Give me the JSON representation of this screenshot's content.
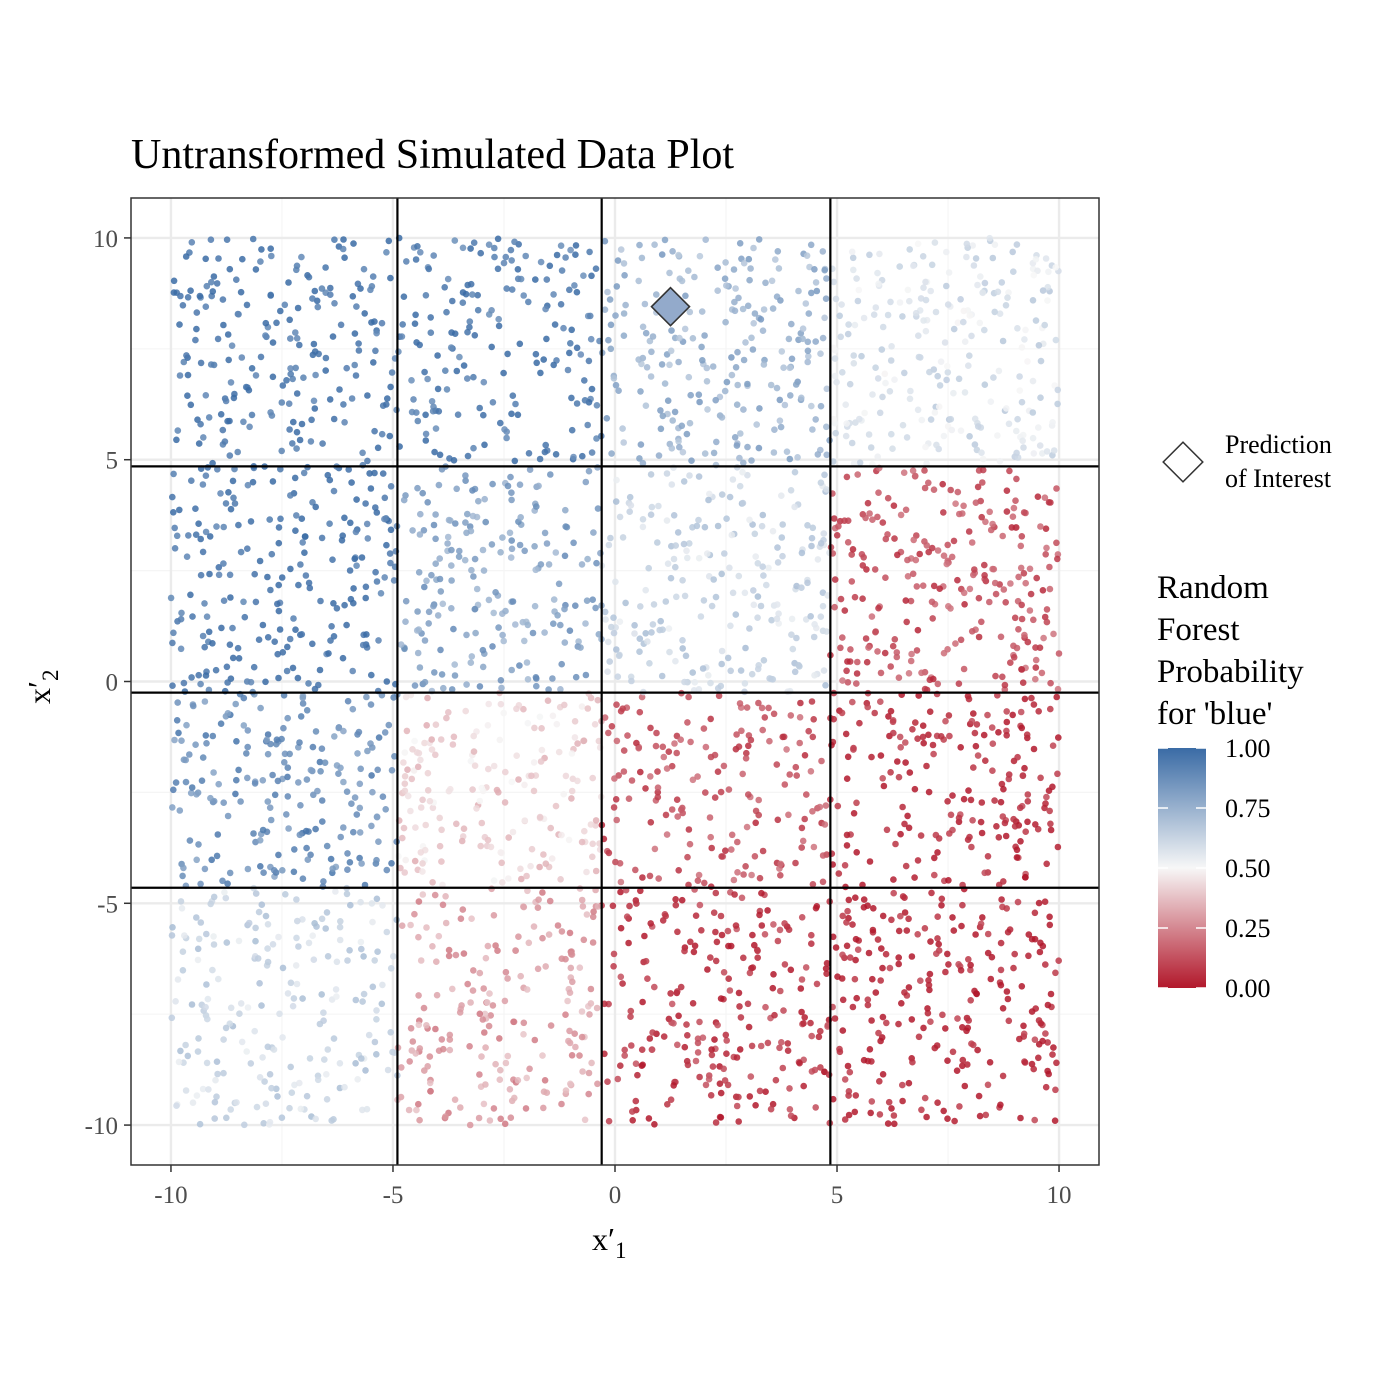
{
  "colors": {
    "high": "#3A6BA5",
    "mid": "#F7F7F7",
    "low": "#B2182B",
    "grid_major": "#EBEBEB",
    "grid_minor": "#F5F5F5",
    "split_line": "#000000",
    "diamond_fill": "#93AACB"
  },
  "chart_data": {
    "type": "scatter",
    "title": "Untransformed Simulated Data Plot",
    "xlabel": "x′",
    "xlabel_sub": "1",
    "ylabel": "x′",
    "ylabel_sub": "2",
    "xlim": [
      -10.9,
      10.9
    ],
    "ylim": [
      -10.9,
      10.9
    ],
    "x_ticks": [
      -10,
      -5,
      0,
      5,
      10
    ],
    "x_tick_labels": [
      "-10",
      "-5",
      "0",
      "5",
      "10"
    ],
    "y_ticks": [
      -10,
      -5,
      0,
      5,
      10
    ],
    "y_tick_labels": [
      "-10",
      "-5",
      "0",
      "5",
      "10"
    ],
    "grid": true,
    "split_lines_x": [
      -4.9,
      -0.3,
      4.85
    ],
    "split_lines_y": [
      4.85,
      -0.25,
      -4.65
    ],
    "point_cloud": {
      "count": 3500,
      "x_range": [
        -10,
        10
      ],
      "y_range": [
        -10,
        10
      ],
      "color_by": "Random Forest Probability for 'blue'",
      "probability_regions": [
        {
          "x": [
            -10,
            -4.9
          ],
          "y": [
            4.85,
            10
          ],
          "p": 0.98
        },
        {
          "x": [
            -4.9,
            -0.3
          ],
          "y": [
            4.85,
            10
          ],
          "p": 0.95
        },
        {
          "x": [
            -0.3,
            4.85
          ],
          "y": [
            4.85,
            10
          ],
          "p": 0.75
        },
        {
          "x": [
            4.85,
            10
          ],
          "y": [
            4.85,
            10
          ],
          "p": 0.58
        },
        {
          "x": [
            -10,
            -4.9
          ],
          "y": [
            -0.25,
            4.85
          ],
          "p": 0.98
        },
        {
          "x": [
            -4.9,
            -0.3
          ],
          "y": [
            -0.25,
            4.85
          ],
          "p": 0.8
        },
        {
          "x": [
            -0.3,
            4.85
          ],
          "y": [
            -0.25,
            4.85
          ],
          "p": 0.62
        },
        {
          "x": [
            4.85,
            10
          ],
          "y": [
            -0.25,
            4.85
          ],
          "p": 0.12
        },
        {
          "x": [
            -10,
            -4.9
          ],
          "y": [
            -4.65,
            -0.25
          ],
          "p": 0.88
        },
        {
          "x": [
            -4.9,
            -0.3
          ],
          "y": [
            -4.65,
            -0.25
          ],
          "p": 0.42
        },
        {
          "x": [
            -0.3,
            4.85
          ],
          "y": [
            -4.65,
            -0.25
          ],
          "p": 0.12
        },
        {
          "x": [
            4.85,
            10
          ],
          "y": [
            -4.65,
            -0.25
          ],
          "p": 0.03
        },
        {
          "x": [
            -10,
            -4.9
          ],
          "y": [
            -10,
            -4.65
          ],
          "p": 0.62
        },
        {
          "x": [
            -4.9,
            -0.3
          ],
          "y": [
            -10,
            -4.65
          ],
          "p": 0.3
        },
        {
          "x": [
            -0.3,
            4.85
          ],
          "y": [
            -10,
            -4.65
          ],
          "p": 0.06
        },
        {
          "x": [
            4.85,
            10
          ],
          "y": [
            -10,
            -4.65
          ],
          "p": 0.02
        }
      ]
    },
    "prediction_of_interest": {
      "x": 1.25,
      "y": 8.45,
      "p": 0.7
    },
    "legend": {
      "shape_entry": [
        "Prediction",
        "of Interest"
      ],
      "colorbar_title": [
        "Random",
        "Forest",
        "Probability",
        "for 'blue'"
      ],
      "colorbar_ticks": [
        1.0,
        0.75,
        0.5,
        0.25,
        0.0
      ],
      "colorbar_tick_labels": [
        "1.00",
        "0.75",
        "0.50",
        "0.25",
        "0.00"
      ],
      "placement": "right"
    }
  }
}
